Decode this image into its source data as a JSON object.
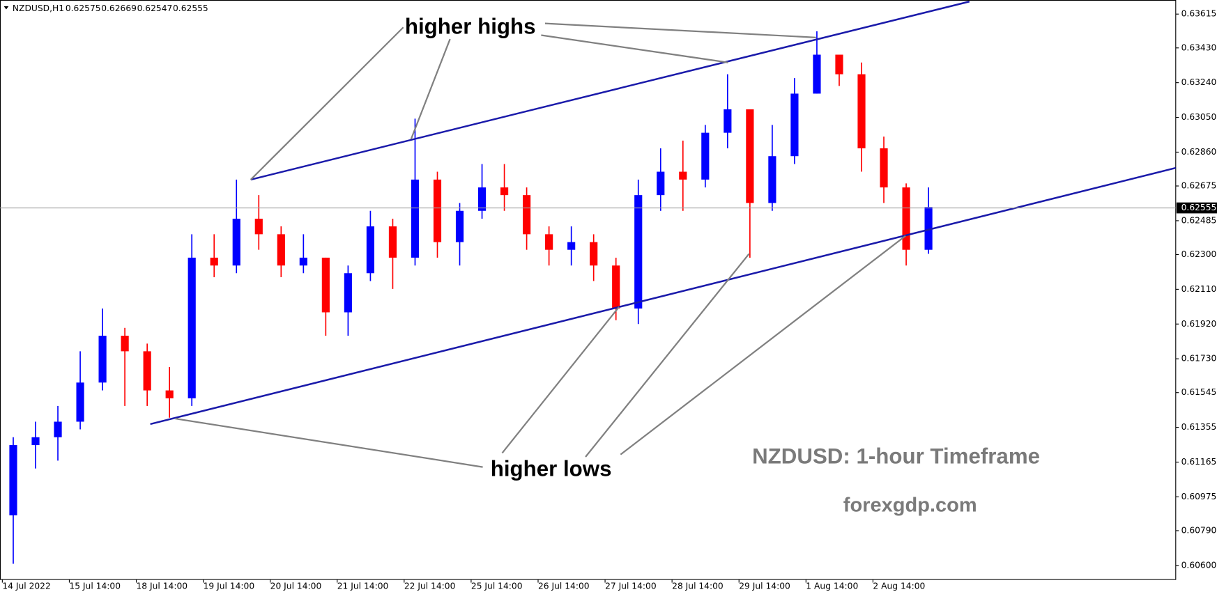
{
  "chart_data": {
    "type": "candlestick",
    "header": {
      "symbol": "NZDUSD,H1",
      "ohlc": [
        0.62575,
        0.62669,
        0.62547,
        0.62555
      ]
    },
    "title": "NZDUSD: 1-hour Timeframe",
    "subtitle": "forexgdp.com",
    "annotations": [
      "higher highs",
      "higher lows"
    ],
    "last_price": 0.62555,
    "up_color": "#0000ff",
    "down_color": "#ff0000",
    "categories": [
      "14 Jul 2022",
      null,
      null,
      "15 Jul 14:00",
      null,
      null,
      "18 Jul 14:00",
      null,
      null,
      "19 Jul 14:00",
      null,
      null,
      "20 Jul 14:00",
      null,
      null,
      "21 Jul 14:00",
      null,
      null,
      "22 Jul 14:00",
      null,
      null,
      "25 Jul 14:00",
      null,
      null,
      "26 Jul 14:00",
      null,
      null,
      "27 Jul 14:00",
      null,
      null,
      "28 Jul 14:00",
      null,
      null,
      "29 Jul 14:00",
      null,
      null,
      "1 Aug 14:00",
      null,
      null,
      "2 Aug 14:00",
      null,
      null
    ],
    "open": [
      0.60874,
      0.61258,
      0.61301,
      0.61386,
      0.616,
      0.61856,
      0.61771,
      0.61557,
      0.61514,
      0.62283,
      0.6224,
      0.62496,
      0.62411,
      0.6224,
      0.62283,
      0.61984,
      0.62198,
      0.62454,
      0.62283,
      0.6271,
      0.62368,
      0.62539,
      0.62667,
      0.62625,
      0.62411,
      0.62326,
      0.62368,
      0.6224,
      0.62005,
      0.62625,
      0.62753,
      0.6271,
      0.62966,
      0.63094,
      0.62582,
      0.62838,
      0.6318,
      0.63393,
      0.63286,
      0.62881,
      0.62667,
      0.62326
    ],
    "high": [
      0.61301,
      0.61386,
      0.61472,
      0.61771,
      0.62005,
      0.61899,
      0.61813,
      0.61685,
      0.62411,
      0.62411,
      0.6271,
      0.62625,
      0.62454,
      0.62411,
      0.62283,
      0.6224,
      0.62539,
      0.62496,
      0.63043,
      0.62753,
      0.62582,
      0.62795,
      0.62795,
      0.62667,
      0.62454,
      0.62454,
      0.62411,
      0.62283,
      0.6271,
      0.62881,
      0.62923,
      0.63009,
      0.63286,
      0.63094,
      0.63009,
      0.63265,
      0.63521,
      0.63393,
      0.6335,
      0.62945,
      0.62689,
      0.62667
    ],
    "low": [
      0.60609,
      0.6113,
      0.61173,
      0.61344,
      0.61557,
      0.61472,
      0.61472,
      0.61408,
      0.61472,
      0.62176,
      0.62198,
      0.62326,
      0.62176,
      0.62198,
      0.61856,
      0.61856,
      0.62155,
      0.62112,
      0.6224,
      0.62283,
      0.6224,
      0.62496,
      0.62539,
      0.62326,
      0.6224,
      0.6224,
      0.62155,
      0.61941,
      0.6192,
      0.62539,
      0.62539,
      0.62667,
      0.62881,
      0.62283,
      0.62539,
      0.62795,
      0.6318,
      0.63222,
      0.62753,
      0.62582,
      0.6224,
      0.62304
    ],
    "close": [
      0.61258,
      0.61301,
      0.61386,
      0.616,
      0.61856,
      0.61771,
      0.61557,
      0.61514,
      0.62283,
      0.6224,
      0.62496,
      0.62411,
      0.6224,
      0.62283,
      0.61984,
      0.62198,
      0.62454,
      0.62283,
      0.6271,
      0.62368,
      0.62539,
      0.62667,
      0.62625,
      0.62411,
      0.62326,
      0.62368,
      0.6224,
      0.62005,
      0.62625,
      0.62753,
      0.6271,
      0.62966,
      0.63094,
      0.62582,
      0.62838,
      0.6318,
      0.63393,
      0.63286,
      0.62881,
      0.62667,
      0.62326,
      0.6256
    ],
    "ylim": [
      0.60523,
      0.63692
    ],
    "yticks": [
      0.63615,
      {
        "value": 0.6343,
        "label": "0.63430"
      },
      {
        "value": 0.6324,
        "label": "0.63240"
      },
      {
        "value": 0.6305,
        "label": "0.63050"
      },
      {
        "value": 0.6286,
        "label": "0.62860"
      },
      0.62675,
      0.62485,
      {
        "value": 0.623,
        "label": "0.62300"
      },
      {
        "value": 0.6211,
        "label": "0.62110"
      },
      {
        "value": 0.6192,
        "label": "0.61920"
      },
      {
        "value": 0.6173,
        "label": "0.61730"
      },
      0.61545,
      0.61355,
      0.61165,
      0.60975,
      {
        "value": 0.6079,
        "label": "0.60790"
      },
      {
        "value": 0.606,
        "label": "0.60600"
      }
    ]
  }
}
